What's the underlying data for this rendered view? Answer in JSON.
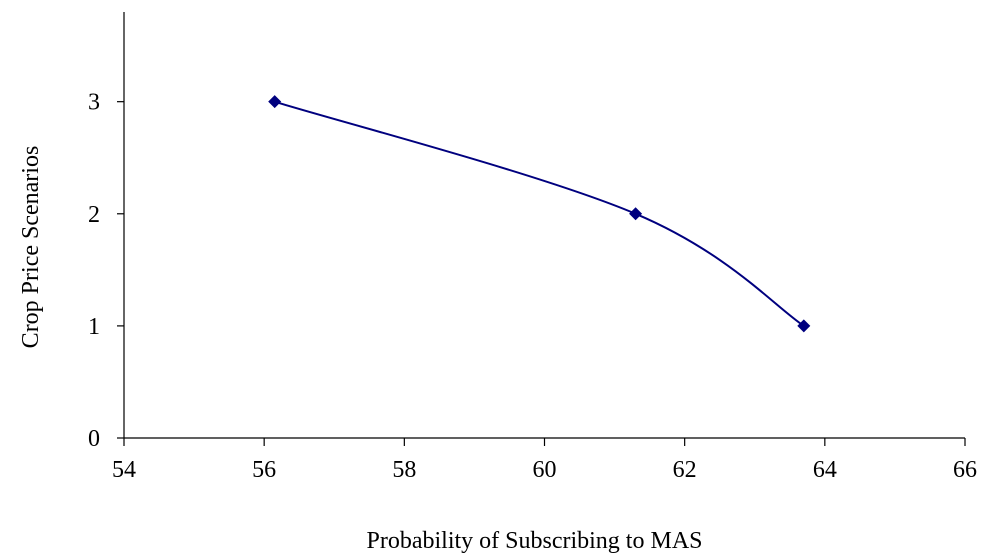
{
  "chart_data": {
    "type": "scatter",
    "title": "",
    "xlabel": "Probability of Subscribing to MAS",
    "ylabel": "Crop Price Scenarios",
    "xlim": [
      54,
      66
    ],
    "ylim": [
      0,
      3.8
    ],
    "xticks": [
      54,
      56,
      58,
      60,
      62,
      64,
      66
    ],
    "yticks": [
      0,
      1,
      2,
      3
    ],
    "grid": false,
    "legend": "none",
    "series": [
      {
        "x": [
          56.15,
          61.3,
          63.7
        ],
        "y": [
          3,
          2,
          1
        ],
        "color": "#00007f",
        "marker": "diamond",
        "smooth": true
      }
    ]
  }
}
